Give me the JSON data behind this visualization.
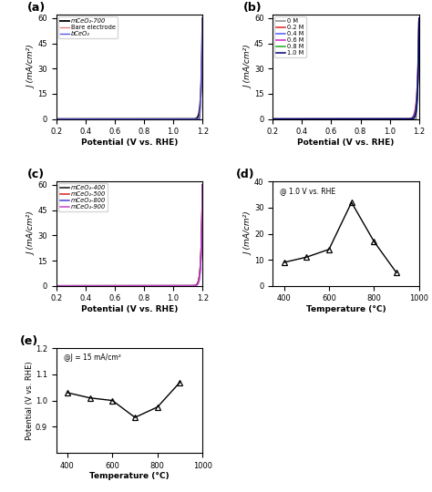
{
  "panel_a": {
    "label": "(a)",
    "legend": [
      "mCeO₂-700",
      "Bare electrode",
      "bCeO₂"
    ],
    "colors": [
      "#111111",
      "#e88080",
      "#5555dd"
    ],
    "onset": [
      0.83,
      1.18,
      1.18
    ],
    "steepness": [
      120,
      80,
      80
    ],
    "lw": [
      1.4,
      1.0,
      1.0
    ],
    "ylim": [
      0,
      62
    ],
    "yticks": [
      0,
      15,
      30,
      45,
      60
    ]
  },
  "panel_b": {
    "label": "(b)",
    "legend": [
      "0 M",
      "0.2 M",
      "0.4 M",
      "0.6 M",
      "0.8 M",
      "1.0 M"
    ],
    "colors": [
      "#888888",
      "#dd2222",
      "#5555ff",
      "#cc22cc",
      "#22aa22",
      "#000077"
    ],
    "onset": [
      1.18,
      0.98,
      0.9,
      0.87,
      0.84,
      0.82
    ],
    "steepness": [
      80,
      90,
      100,
      110,
      120,
      130
    ],
    "ylim": [
      0,
      62
    ],
    "yticks": [
      0,
      15,
      30,
      45,
      60
    ]
  },
  "panel_c": {
    "label": "(c)",
    "legend": [
      "mCeO₂-400",
      "mCeO₂-500",
      "mCeO₂-800",
      "mCeO₂-900"
    ],
    "colors": [
      "#111111",
      "#dd2222",
      "#4444cc",
      "#cc44cc"
    ],
    "onset": [
      0.9,
      0.88,
      0.84,
      0.82
    ],
    "steepness": [
      110,
      110,
      120,
      130
    ],
    "ylim": [
      0,
      62
    ],
    "yticks": [
      0,
      15,
      30,
      45,
      60
    ]
  },
  "panel_d": {
    "label": "(d)",
    "annotation": "@ 1.0 V vs. RHE",
    "temperatures": [
      400,
      500,
      600,
      700,
      800,
      900
    ],
    "currents": [
      9,
      11,
      14,
      32,
      17,
      5
    ],
    "ylim": [
      0,
      40
    ],
    "yticks": [
      0,
      10,
      20,
      30,
      40
    ],
    "xlim": [
      350,
      1000
    ],
    "xticks": [
      400,
      600,
      800,
      1000
    ]
  },
  "panel_e": {
    "label": "(e)",
    "annotation": "@J = 15 mA/cm²",
    "temperatures": [
      400,
      500,
      600,
      700,
      800,
      900
    ],
    "potentials": [
      1.03,
      1.01,
      1.0,
      0.935,
      0.975,
      1.07
    ],
    "ylim": [
      0.8,
      1.2
    ],
    "yticks": [
      0.9,
      1.0,
      1.1,
      1.2
    ],
    "xlim": [
      350,
      1000
    ],
    "xticks": [
      400,
      600,
      800,
      1000
    ]
  },
  "xlabel_potential": "Potential (V vs. RHE)",
  "ylabel_J": "J (mA/cm²)",
  "xlim_potential": [
    0.2,
    1.2
  ],
  "xticks_potential": [
    0.2,
    0.4,
    0.6,
    0.8,
    1.0,
    1.2
  ]
}
